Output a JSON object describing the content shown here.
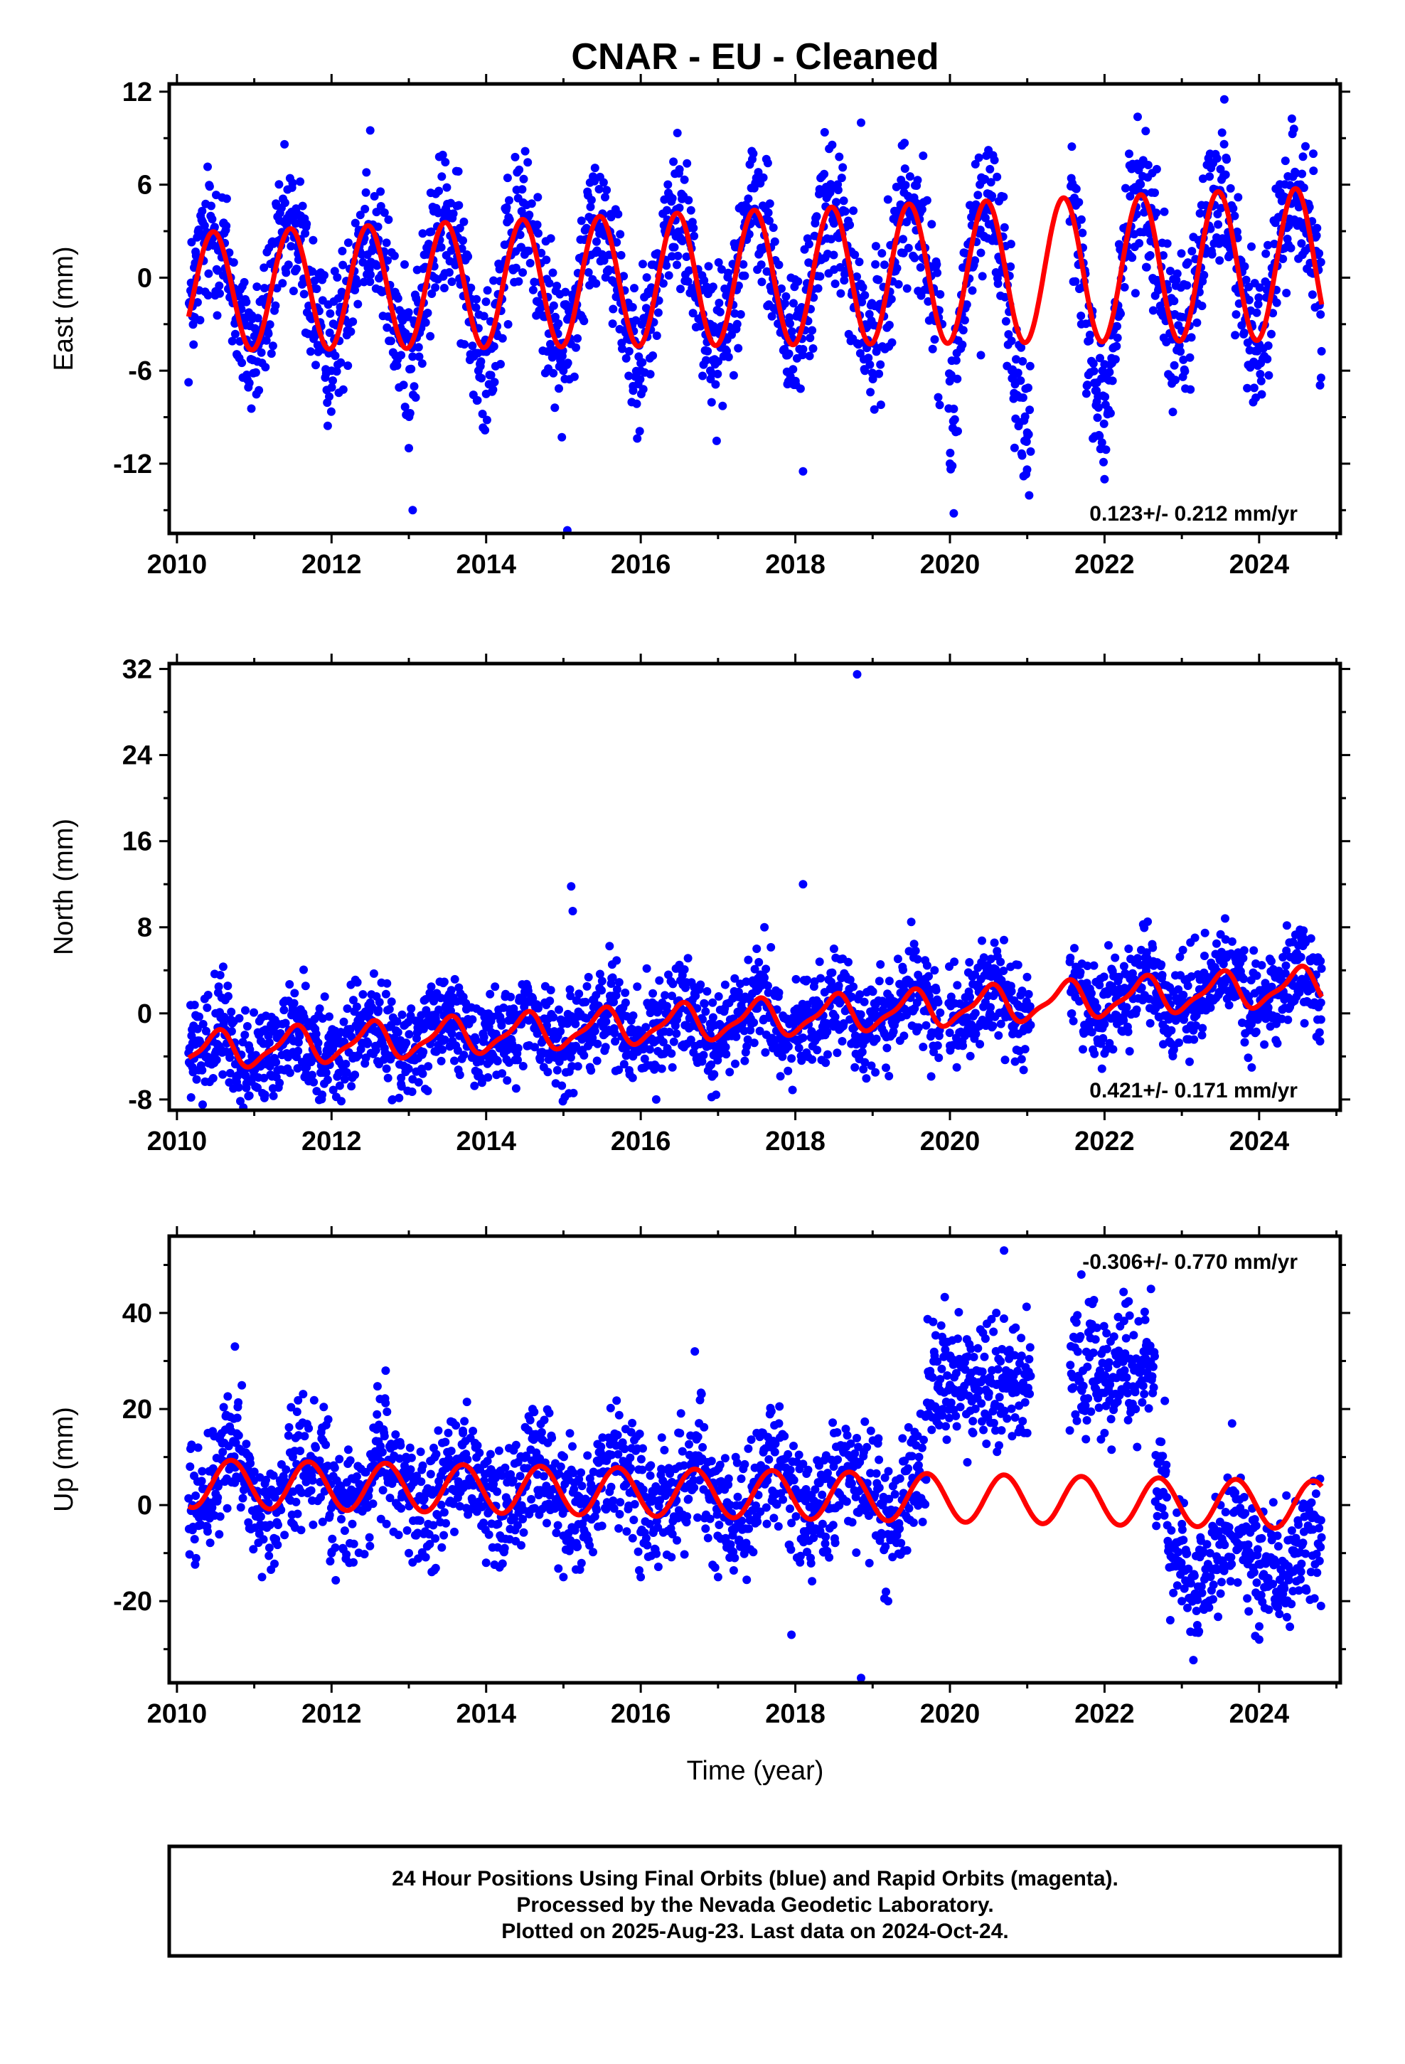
{
  "title": "CNAR  - EU - Cleaned",
  "x_axis_label": "Time (year)",
  "footer": [
    "24 Hour Positions Using Final Orbits (blue) and Rapid Orbits (magenta).",
    "Processed by the Nevada Geodetic Laboratory.",
    "Plotted on 2025-Aug-23. Last data on 2024-Oct-24."
  ],
  "colors": {
    "data_points": "#0000ff",
    "model_fit": "#ff0000",
    "frame": "#000000"
  },
  "chart_data": [
    {
      "type": "scatter",
      "component": "east",
      "ylabel": "East (mm)",
      "xlim": [
        2009.9,
        2025.05
      ],
      "ylim": [
        -16.5,
        12.5
      ],
      "xticks": [
        "2010",
        "2012",
        "2014",
        "2016",
        "2018",
        "2020",
        "2022",
        "2024"
      ],
      "yticks": [
        "12",
        "6",
        "0",
        "-6",
        "-12"
      ],
      "rate_label": "0.123+/- 0.212 mm/yr",
      "rate_position": "bottom-right",
      "series": [
        {
          "kind": "daily-positions",
          "points": [
            [
              2010.2,
              -2.5
            ],
            [
              2010.4,
              2.0
            ],
            [
              2010.6,
              3.5
            ],
            [
              2010.9,
              -4.0
            ],
            [
              2011.1,
              -5.5
            ],
            [
              2011.4,
              2.5
            ],
            [
              2011.6,
              4.0
            ],
            [
              2011.9,
              -4.5
            ],
            [
              2012.0,
              -6.0
            ],
            [
              2012.4,
              3.0
            ],
            [
              2012.5,
              9.5
            ],
            [
              2012.9,
              -5.0
            ],
            [
              2013.0,
              -11.0
            ],
            [
              2013.05,
              -15.0
            ],
            [
              2013.5,
              4.0
            ],
            [
              2013.9,
              -6.0
            ],
            [
              2014.0,
              -7.5
            ],
            [
              2014.5,
              3.5
            ],
            [
              2014.9,
              -5.0
            ],
            [
              2015.05,
              -16.3
            ],
            [
              2015.5,
              4.0
            ],
            [
              2015.9,
              -7.0
            ],
            [
              2016.0,
              -6.0
            ],
            [
              2016.5,
              4.5
            ],
            [
              2016.9,
              -6.0
            ],
            [
              2017.5,
              4.0
            ],
            [
              2017.9,
              -5.0
            ],
            [
              2018.1,
              -12.5
            ],
            [
              2018.5,
              3.5
            ],
            [
              2018.85,
              10.0
            ],
            [
              2018.9,
              -6.0
            ],
            [
              2019.5,
              4.0
            ],
            [
              2019.9,
              -3.0
            ],
            [
              2020.0,
              -12.0
            ],
            [
              2020.05,
              -15.2
            ],
            [
              2020.4,
              -5.0
            ],
            [
              2020.8,
              -6.0
            ],
            [
              2021.0,
              -10.0
            ],
            [
              2021.7,
              -3.0
            ],
            [
              2021.9,
              -8.0
            ],
            [
              2022.0,
              -13.0
            ],
            [
              2022.4,
              -1.0
            ],
            [
              2022.9,
              -1.5
            ],
            [
              2023.2,
              0.0
            ],
            [
              2023.5,
              7.0
            ],
            [
              2023.55,
              11.5
            ],
            [
              2023.9,
              2.0
            ],
            [
              2024.0,
              -4.5
            ],
            [
              2024.5,
              6.0
            ],
            [
              2024.7,
              8.0
            ],
            [
              2024.8,
              1.0
            ]
          ]
        },
        {
          "kind": "model",
          "description": "linear trend + annual + semiannual",
          "x_start": 2010.15,
          "x_end": 2024.81,
          "intercept": -0.9,
          "intercept_epoch": 2010.15,
          "rate": 0.123,
          "annual_amplitude": 3.8,
          "annual_phase_year": 2010.47,
          "annual_amplitude_growth": 0.02,
          "semiannual_amplitude": 0.0,
          "semiannual_phase_year": 2010.2
        }
      ]
    },
    {
      "type": "scatter",
      "component": "north",
      "ylabel": "North (mm)",
      "xlim": [
        2009.9,
        2025.05
      ],
      "ylim": [
        -9,
        32.5
      ],
      "xticks": [
        "2010",
        "2012",
        "2014",
        "2016",
        "2018",
        "2020",
        "2022",
        "2024"
      ],
      "yticks": [
        "32",
        "24",
        "16",
        "8",
        "0",
        "-8"
      ],
      "rate_label": "0.421+/- 0.171 mm/yr",
      "rate_position": "bottom-right",
      "series": [
        {
          "kind": "daily-positions",
          "points": [
            [
              2010.2,
              -5.0
            ],
            [
              2010.5,
              0.0
            ],
            [
              2010.9,
              -6.5
            ],
            [
              2011.5,
              0.5
            ],
            [
              2011.9,
              -5.0
            ],
            [
              2012.5,
              1.0
            ],
            [
              2012.9,
              -6.0
            ],
            [
              2013.5,
              1.5
            ],
            [
              2013.9,
              -5.5
            ],
            [
              2014.5,
              2.5
            ],
            [
              2014.9,
              -6.5
            ],
            [
              2015.1,
              11.8
            ],
            [
              2015.12,
              9.5
            ],
            [
              2015.5,
              3.0
            ],
            [
              2015.9,
              -4.0
            ],
            [
              2016.2,
              -8.0
            ],
            [
              2016.5,
              4.5
            ],
            [
              2016.9,
              -2.0
            ],
            [
              2017.5,
              6.0
            ],
            [
              2017.6,
              8.0
            ],
            [
              2018.1,
              12.0
            ],
            [
              2018.5,
              6.0
            ],
            [
              2018.8,
              31.5
            ],
            [
              2018.9,
              -2.0
            ],
            [
              2019.5,
              8.5
            ],
            [
              2019.8,
              4.0
            ],
            [
              2020.0,
              -3.0
            ],
            [
              2020.5,
              3.5
            ],
            [
              2020.9,
              -3.5
            ],
            [
              2021.6,
              3.0
            ],
            [
              2022.0,
              -1.0
            ],
            [
              2022.5,
              4.5
            ],
            [
              2022.9,
              -3.0
            ],
            [
              2023.1,
              -4.5
            ],
            [
              2023.5,
              5.0
            ],
            [
              2023.9,
              -1.0
            ],
            [
              2024.5,
              5.0
            ],
            [
              2024.8,
              1.0
            ]
          ]
        },
        {
          "kind": "model",
          "description": "linear trend + annual + semiannual",
          "x_start": 2010.15,
          "x_end": 2024.81,
          "intercept": -3.6,
          "intercept_epoch": 2010.15,
          "rate": 0.421,
          "annual_amplitude": 1.6,
          "annual_phase_year": 2010.5,
          "annual_amplitude_growth": 0.0,
          "semiannual_amplitude": 0.5,
          "semiannual_phase_year": 2010.6
        }
      ]
    },
    {
      "type": "scatter",
      "component": "up",
      "ylabel": "Up (mm)",
      "xlim": [
        2009.9,
        2025.05
      ],
      "ylim": [
        -37,
        56
      ],
      "xticks": [
        "2010",
        "2012",
        "2014",
        "2016",
        "2018",
        "2020",
        "2022",
        "2024"
      ],
      "yticks": [
        "40",
        "20",
        "0",
        "-20"
      ],
      "rate_label": "-0.306+/- 0.770 mm/yr",
      "rate_position": "top-right",
      "series": [
        {
          "kind": "daily-positions",
          "points": [
            [
              2010.2,
              0.0
            ],
            [
              2010.4,
              15.0
            ],
            [
              2010.7,
              10.0
            ],
            [
              2010.75,
              33.0
            ],
            [
              2011.1,
              -15.0
            ],
            [
              2011.5,
              10.0
            ],
            [
              2012.0,
              -10.0
            ],
            [
              2012.7,
              28.0
            ],
            [
              2013.0,
              -10.0
            ],
            [
              2013.7,
              15.0
            ],
            [
              2014.0,
              -12.0
            ],
            [
              2014.6,
              20.0
            ],
            [
              2015.0,
              -15.0
            ],
            [
              2015.5,
              10.0
            ],
            [
              2016.0,
              -15.0
            ],
            [
              2016.7,
              32.0
            ],
            [
              2017.0,
              -15.0
            ],
            [
              2017.5,
              15.0
            ],
            [
              2017.95,
              -27.0
            ],
            [
              2018.5,
              15.0
            ],
            [
              2018.85,
              -36.0
            ],
            [
              2019.2,
              -20.0
            ],
            [
              2019.6,
              10.0
            ],
            [
              2019.9,
              35.0
            ],
            [
              2020.0,
              25.0
            ],
            [
              2020.3,
              15.0
            ],
            [
              2020.6,
              40.0
            ],
            [
              2020.7,
              53.0
            ],
            [
              2021.0,
              15.0
            ],
            [
              2021.6,
              35.0
            ],
            [
              2021.7,
              48.0
            ],
            [
              2022.0,
              15.0
            ],
            [
              2022.2,
              30.0
            ],
            [
              2022.6,
              45.0
            ],
            [
              2022.7,
              10.0
            ],
            [
              2023.0,
              -20.0
            ],
            [
              2023.2,
              -25.0
            ],
            [
              2023.5,
              0.0
            ],
            [
              2023.65,
              17.0
            ],
            [
              2024.0,
              -28.0
            ],
            [
              2024.5,
              -10.0
            ],
            [
              2024.8,
              -21.0
            ]
          ]
        },
        {
          "kind": "model",
          "description": "linear trend + annual + semiannual",
          "x_start": 2010.15,
          "x_end": 2024.81,
          "intercept": 4.5,
          "intercept_epoch": 2010.15,
          "rate": -0.306,
          "annual_amplitude": 5.0,
          "annual_phase_year": 2010.7,
          "annual_amplitude_growth": 0.0,
          "semiannual_amplitude": 0.0,
          "semiannual_phase_year": 2010.7
        }
      ]
    }
  ]
}
